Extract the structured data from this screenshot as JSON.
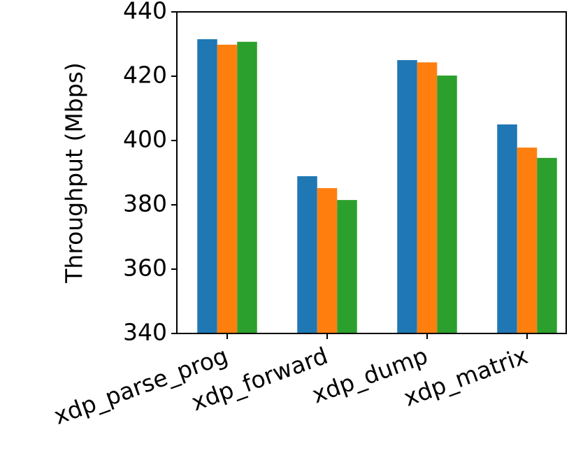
{
  "chart_data": {
    "type": "bar",
    "y_label": "Throughput (Mbps)",
    "categories": [
      "xdp_parse_prog",
      "xdp_forward",
      "xdp_dump",
      "xdp_matrix"
    ],
    "series": [
      {
        "color": "#1f77b4",
        "values": [
          431.5,
          388.9,
          425.0,
          405.0
        ]
      },
      {
        "color": "#ff7f0e",
        "values": [
          429.8,
          385.2,
          424.3,
          397.8
        ]
      },
      {
        "color": "#2ca02c",
        "values": [
          430.7,
          381.5,
          420.2,
          394.6
        ]
      }
    ],
    "ylim": [
      340,
      440
    ],
    "yticks": [
      340,
      360,
      380,
      400,
      420,
      440
    ],
    "grid": false
  }
}
